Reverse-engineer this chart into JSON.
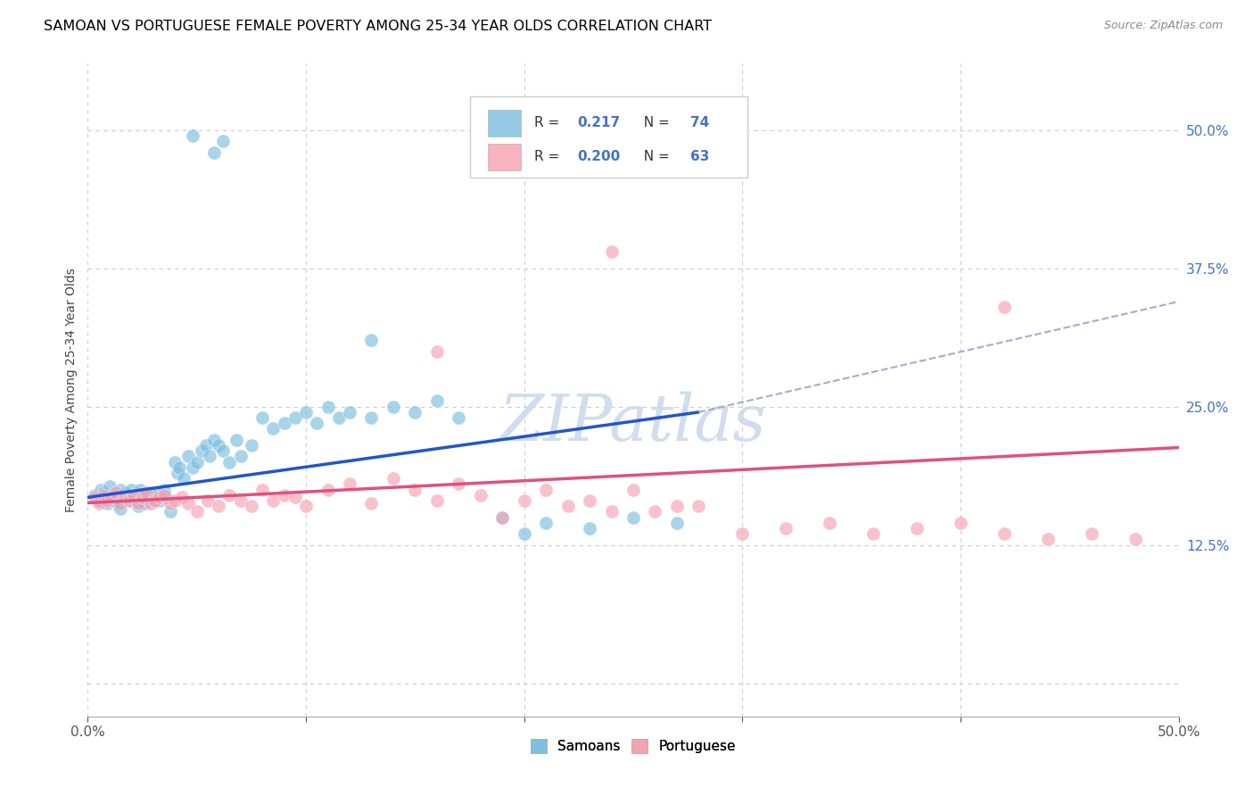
{
  "title": "SAMOAN VS PORTUGUESE FEMALE POVERTY AMONG 25-34 YEAR OLDS CORRELATION CHART",
  "source": "Source: ZipAtlas.com",
  "ylabel": "Female Poverty Among 25-34 Year Olds",
  "xlim": [
    0.0,
    0.5
  ],
  "ylim": [
    -0.03,
    0.56
  ],
  "samoan_color": "#7abde0",
  "portuguese_color": "#f5a0b0",
  "samoan_line_color": "#2255cc",
  "portuguese_line_color": "#e05080",
  "dashed_line_color": "#aaaacc",
  "samoan_R": 0.217,
  "samoan_N": 74,
  "portuguese_R": 0.2,
  "portuguese_N": 63,
  "watermark": "ZIPatlas",
  "watermark_color": "#c8d8ec",
  "grid_color": "#cccccc",
  "ytick_vals": [
    0.0,
    0.125,
    0.25,
    0.375,
    0.5
  ],
  "ytick_labels": [
    "",
    "12.5%",
    "25.0%",
    "37.5%",
    "50.0%"
  ],
  "xtick_vals": [
    0.0,
    0.1,
    0.2,
    0.3,
    0.4,
    0.5
  ],
  "xtick_labels": [
    "0.0%",
    "",
    "",
    "",
    "",
    "50.0%"
  ],
  "samoan_x": [
    0.003,
    0.005,
    0.006,
    0.007,
    0.008,
    0.009,
    0.01,
    0.011,
    0.012,
    0.013,
    0.014,
    0.015,
    0.015,
    0.016,
    0.017,
    0.018,
    0.019,
    0.02,
    0.021,
    0.022,
    0.023,
    0.024,
    0.025,
    0.026,
    0.027,
    0.028,
    0.03,
    0.031,
    0.032,
    0.033,
    0.035,
    0.036,
    0.038,
    0.04,
    0.041,
    0.042,
    0.044,
    0.046,
    0.048,
    0.05,
    0.052,
    0.054,
    0.056,
    0.058,
    0.06,
    0.062,
    0.065,
    0.068,
    0.07,
    0.075,
    0.08,
    0.085,
    0.09,
    0.095,
    0.1,
    0.105,
    0.11,
    0.115,
    0.12,
    0.13,
    0.14,
    0.15,
    0.16,
    0.17,
    0.19,
    0.2,
    0.21,
    0.23,
    0.25,
    0.27,
    0.048,
    0.058,
    0.062,
    0.13
  ],
  "samoan_y": [
    0.17,
    0.165,
    0.175,
    0.172,
    0.168,
    0.163,
    0.178,
    0.17,
    0.165,
    0.168,
    0.162,
    0.175,
    0.158,
    0.17,
    0.172,
    0.165,
    0.168,
    0.175,
    0.17,
    0.165,
    0.16,
    0.175,
    0.168,
    0.163,
    0.17,
    0.172,
    0.165,
    0.168,
    0.172,
    0.165,
    0.175,
    0.168,
    0.155,
    0.2,
    0.19,
    0.195,
    0.185,
    0.205,
    0.195,
    0.2,
    0.21,
    0.215,
    0.205,
    0.22,
    0.215,
    0.21,
    0.2,
    0.22,
    0.205,
    0.215,
    0.24,
    0.23,
    0.235,
    0.24,
    0.245,
    0.235,
    0.25,
    0.24,
    0.245,
    0.24,
    0.25,
    0.245,
    0.255,
    0.24,
    0.15,
    0.135,
    0.145,
    0.14,
    0.15,
    0.145,
    0.495,
    0.48,
    0.49,
    0.31
  ],
  "portuguese_x": [
    0.003,
    0.005,
    0.007,
    0.009,
    0.011,
    0.013,
    0.015,
    0.017,
    0.019,
    0.021,
    0.023,
    0.025,
    0.027,
    0.029,
    0.031,
    0.033,
    0.035,
    0.038,
    0.04,
    0.043,
    0.046,
    0.05,
    0.055,
    0.06,
    0.065,
    0.07,
    0.075,
    0.08,
    0.085,
    0.09,
    0.095,
    0.1,
    0.11,
    0.12,
    0.13,
    0.14,
    0.15,
    0.16,
    0.17,
    0.18,
    0.19,
    0.2,
    0.21,
    0.22,
    0.23,
    0.24,
    0.25,
    0.26,
    0.27,
    0.28,
    0.3,
    0.32,
    0.34,
    0.36,
    0.38,
    0.4,
    0.42,
    0.44,
    0.46,
    0.48,
    0.24,
    0.16,
    0.42
  ],
  "portuguese_y": [
    0.168,
    0.163,
    0.17,
    0.165,
    0.168,
    0.172,
    0.163,
    0.168,
    0.165,
    0.17,
    0.163,
    0.168,
    0.172,
    0.163,
    0.165,
    0.168,
    0.17,
    0.163,
    0.165,
    0.168,
    0.163,
    0.155,
    0.165,
    0.16,
    0.17,
    0.165,
    0.16,
    0.175,
    0.165,
    0.17,
    0.168,
    0.16,
    0.175,
    0.18,
    0.163,
    0.185,
    0.175,
    0.165,
    0.18,
    0.17,
    0.15,
    0.165,
    0.175,
    0.16,
    0.165,
    0.155,
    0.175,
    0.155,
    0.16,
    0.16,
    0.135,
    0.14,
    0.145,
    0.135,
    0.14,
    0.145,
    0.135,
    0.13,
    0.135,
    0.13,
    0.39,
    0.3,
    0.34
  ],
  "blue_trend_x": [
    0.0,
    0.28
  ],
  "blue_trend_y": [
    0.168,
    0.245
  ],
  "dashed_trend_x": [
    0.28,
    0.5
  ],
  "dashed_trend_y": [
    0.245,
    0.345
  ],
  "pink_trend_x": [
    0.0,
    0.5
  ],
  "pink_trend_y": [
    0.163,
    0.213
  ]
}
